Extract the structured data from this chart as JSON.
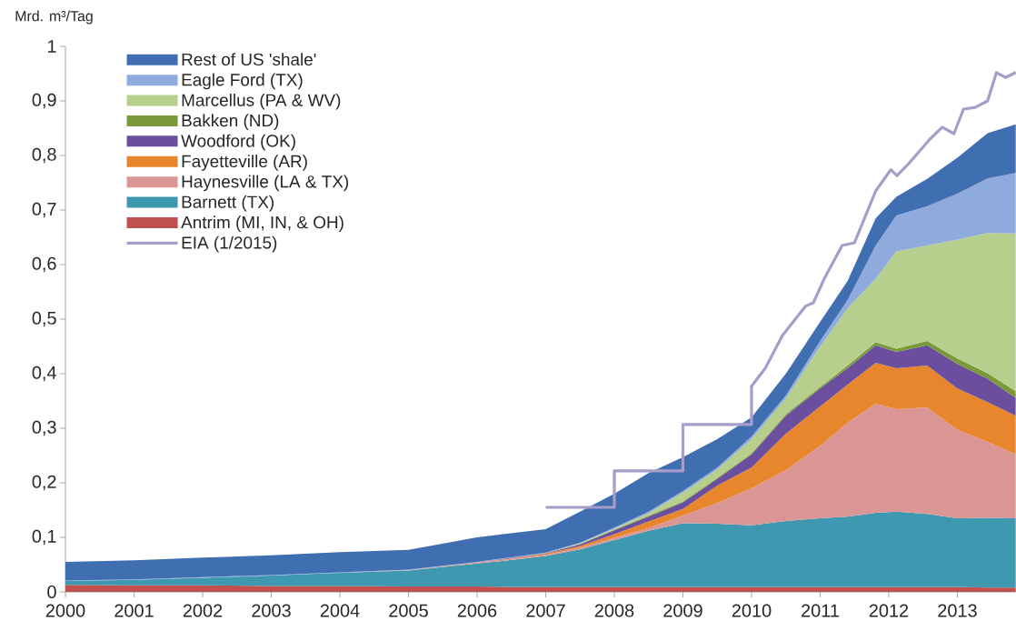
{
  "chart_data": {
    "type": "area",
    "stacked": true,
    "legend": "top left",
    "ylabel": "Mrd. m³/Tag",
    "x": [
      2000,
      2001,
      2002,
      2003,
      2004,
      2005,
      2006,
      2006.46,
      2007,
      2007.5,
      2008,
      2008.5,
      2009,
      2009.5,
      2010,
      2010.5,
      2011,
      2011.4,
      2011.81,
      2012.11,
      2012.56,
      2013,
      2013.44,
      2013.85
    ],
    "xlim": [
      2000,
      2013.85
    ],
    "xticks": [
      2000,
      2001,
      2002,
      2003,
      2004,
      2005,
      2006,
      2007,
      2008,
      2009,
      2010,
      2011,
      2012,
      2013
    ],
    "ylim": [
      0,
      1
    ],
    "yticks": [
      {
        "value": 0,
        "label": "0"
      },
      {
        "value": 0.1,
        "label": "0,1"
      },
      {
        "value": 0.2,
        "label": "0,2"
      },
      {
        "value": 0.3,
        "label": "0,3"
      },
      {
        "value": 0.4,
        "label": "0,4"
      },
      {
        "value": 0.5,
        "label": "0,5"
      },
      {
        "value": 0.6,
        "label": "0,6"
      },
      {
        "value": 0.7,
        "label": "0,7"
      },
      {
        "value": 0.8,
        "label": "0,8"
      },
      {
        "value": 0.9,
        "label": "0,9"
      },
      {
        "value": 1,
        "label": "1"
      }
    ],
    "series": [
      {
        "name": "Antrim (MI, IN, & OH)",
        "color": "#c0504d",
        "values": [
          0.013,
          0.012,
          0.012,
          0.011,
          0.011,
          0.01,
          0.01,
          0.009,
          0.009,
          0.009,
          0.009,
          0.009,
          0.009,
          0.009,
          0.009,
          0.009,
          0.009,
          0.009,
          0.009,
          0.009,
          0.009,
          0.009,
          0.008,
          0.008
        ]
      },
      {
        "name": "Barnett (TX)",
        "color": "#3d98b0",
        "values": [
          0.007,
          0.01,
          0.014,
          0.019,
          0.024,
          0.029,
          0.042,
          0.049,
          0.057,
          0.069,
          0.086,
          0.103,
          0.117,
          0.116,
          0.113,
          0.121,
          0.126,
          0.129,
          0.136,
          0.138,
          0.134,
          0.126,
          0.128,
          0.127
        ]
      },
      {
        "name": "Haynesville (LA & TX)",
        "color": "#d99694",
        "values": [
          0,
          0,
          0,
          0,
          0,
          0.001,
          0.002,
          0.002,
          0.002,
          0.003,
          0.004,
          0.005,
          0.014,
          0.038,
          0.068,
          0.093,
          0.133,
          0.172,
          0.2,
          0.188,
          0.195,
          0.162,
          0.139,
          0.117
        ]
      },
      {
        "name": "Fayetteville (AR)",
        "color": "#e8862e",
        "values": [
          0,
          0,
          0,
          0,
          0,
          0,
          0,
          0.001,
          0.002,
          0.003,
          0.007,
          0.012,
          0.012,
          0.032,
          0.038,
          0.067,
          0.072,
          0.07,
          0.075,
          0.075,
          0.077,
          0.076,
          0.073,
          0.071
        ]
      },
      {
        "name": "Woodford (OK)",
        "color": "#6b4f9e",
        "values": [
          0,
          0,
          0,
          0,
          0,
          0,
          0,
          0.001,
          0.001,
          0.003,
          0.007,
          0.009,
          0.012,
          0.012,
          0.024,
          0.033,
          0.033,
          0.03,
          0.032,
          0.03,
          0.037,
          0.045,
          0.043,
          0.033
        ]
      },
      {
        "name": "Bakken (ND)",
        "color": "#7a9a3a",
        "values": [
          0,
          0,
          0,
          0,
          0,
          0,
          0,
          0,
          0,
          0.001,
          0.001,
          0.002,
          0.002,
          0.002,
          0.002,
          0.003,
          0.003,
          0.005,
          0.006,
          0.006,
          0.008,
          0.01,
          0.01,
          0.012
        ]
      },
      {
        "name": "Marcellus (PA & WV)",
        "color": "#b6cf8d",
        "values": [
          0,
          0,
          0,
          0,
          0,
          0,
          0,
          0,
          0,
          0.001,
          0.002,
          0.004,
          0.016,
          0.015,
          0.026,
          0.029,
          0.074,
          0.105,
          0.116,
          0.178,
          0.175,
          0.218,
          0.257,
          0.289
        ]
      },
      {
        "name": "Eagle Ford (TX)",
        "color": "#8faadc",
        "values": [
          0.001,
          0.001,
          0.001,
          0.001,
          0.001,
          0.001,
          0.001,
          0.001,
          0.001,
          0.001,
          0.002,
          0.003,
          0.003,
          0.004,
          0.005,
          0.005,
          0.01,
          0.015,
          0.061,
          0.066,
          0.072,
          0.084,
          0.1,
          0.111
        ]
      },
      {
        "name": "Rest of US 'shale'",
        "color": "#3f6fb0",
        "values": [
          0.034,
          0.035,
          0.036,
          0.036,
          0.037,
          0.036,
          0.045,
          0.044,
          0.043,
          0.057,
          0.062,
          0.071,
          0.062,
          0.052,
          0.035,
          0.04,
          0.035,
          0.035,
          0.05,
          0.034,
          0.05,
          0.066,
          0.083,
          0.089
        ]
      },
      {
        "name": "EIA (1/2015)",
        "type": "line",
        "color": "#a89cc8",
        "x": [
          2007,
          2008,
          2008,
          2009,
          2009,
          2010,
          2010,
          2010.2,
          2010.45,
          2010.79,
          2010.9,
          2011.06,
          2011.32,
          2011.5,
          2011.81,
          2012.03,
          2012.12,
          2012.29,
          2012.6,
          2012.78,
          2012.95,
          2013.09,
          2013.26,
          2013.44,
          2013.57,
          2013.7,
          2013.85
        ],
        "values": [
          0.155,
          0.155,
          0.222,
          0.222,
          0.307,
          0.307,
          0.377,
          0.41,
          0.47,
          0.524,
          0.53,
          0.574,
          0.635,
          0.64,
          0.735,
          0.774,
          0.763,
          0.785,
          0.83,
          0.852,
          0.84,
          0.885,
          0.888,
          0.9,
          0.952,
          0.943,
          0.952
        ]
      }
    ]
  }
}
